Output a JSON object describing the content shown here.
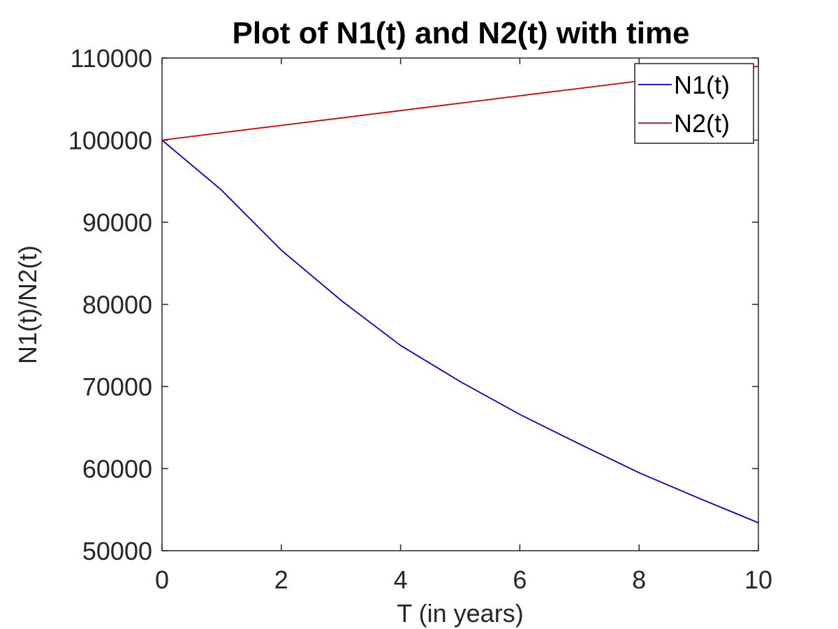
{
  "chart_data": {
    "type": "line",
    "title": "Plot of N1(t) and N2(t) with time",
    "xlabel": "T (in years)",
    "ylabel": "N1(t)/N2(t)",
    "xlim": [
      0,
      10
    ],
    "ylim": [
      50000,
      110000
    ],
    "xticks": [
      0,
      2,
      4,
      6,
      8,
      10
    ],
    "yticks": [
      50000,
      60000,
      70000,
      80000,
      90000,
      100000,
      110000
    ],
    "xtick_labels": [
      "0",
      "2",
      "4",
      "6",
      "8",
      "10"
    ],
    "ytick_labels": [
      "50000",
      "60000",
      "70000",
      "80000",
      "90000",
      "100000",
      "110000"
    ],
    "grid": false,
    "legend_position": "top-right",
    "x": [
      0,
      1,
      2,
      3,
      4,
      5,
      6,
      7,
      8,
      9,
      10
    ],
    "series": [
      {
        "name": "N1(t)",
        "color": "#0000cc",
        "values": [
          100000,
          93900,
          86600,
          80500,
          75000,
          70600,
          66600,
          63000,
          59500,
          56400,
          53400
        ]
      },
      {
        "name": "N2(t)",
        "color": "#dd0000",
        "values": [
          100000,
          100900,
          101800,
          102700,
          103600,
          104500,
          105400,
          106300,
          107200,
          108100,
          109000
        ]
      }
    ]
  }
}
